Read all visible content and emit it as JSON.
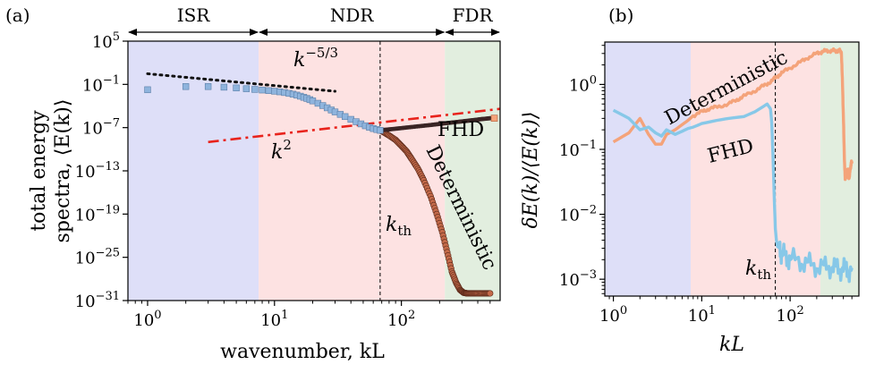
{
  "chart_data": [
    {
      "panel": "(a)",
      "type": "scatter",
      "xscale": "log",
      "yscale": "log",
      "xlabel": "wavenumber, kL",
      "ylabel_line1": "total energy",
      "ylabel_line2": "spectra, ⟨E(k)⟩",
      "xlim": [
        0.7,
        600
      ],
      "ylim": [
        1e-31,
        100000.0
      ],
      "xticks": [
        {
          "value": 1,
          "base": "10",
          "exp": "0"
        },
        {
          "value": 10,
          "base": "10",
          "exp": "1"
        },
        {
          "value": 100,
          "base": "10",
          "exp": "2"
        }
      ],
      "yticks": [
        {
          "value": 100000.0,
          "base": "10",
          "exp": "5"
        },
        {
          "value": 0.1,
          "base": "10",
          "exp": "−1"
        },
        {
          "value": 1e-07,
          "base": "10",
          "exp": "−7"
        },
        {
          "value": 1e-13,
          "base": "10",
          "exp": "−13"
        },
        {
          "value": 1e-19,
          "base": "10",
          "exp": "−19"
        },
        {
          "value": 1e-25,
          "base": "10",
          "exp": "−25"
        },
        {
          "value": 1e-31,
          "base": "10",
          "exp": "−31"
        }
      ],
      "regions": [
        {
          "name": "ISR",
          "kmin": 0.7,
          "kmax": 7.5,
          "color": "#dedff8"
        },
        {
          "name": "NDR",
          "kmin": 7.5,
          "kmax": 220,
          "color": "#fde2e2"
        },
        {
          "name": "FDR",
          "kmin": 220,
          "kmax": 600,
          "color": "#e2eedf"
        }
      ],
      "k_th": 68,
      "k_th_label": "k",
      "k_th_sub": "th",
      "series": [
        {
          "name": "FHD",
          "marker": "square",
          "color": "#8fb4dd",
          "x": [
            1,
            2,
            3,
            4,
            5,
            6,
            7,
            8,
            9,
            10,
            11,
            12,
            13,
            14,
            15,
            16,
            17,
            18,
            19,
            20,
            22,
            24,
            26,
            28,
            30,
            33,
            36,
            40,
            44,
            48,
            52,
            56,
            60,
            64,
            68
          ],
          "values": [
            0.018,
            0.05,
            0.05,
            0.041,
            0.032,
            0.025,
            0.02,
            0.0165,
            0.0137,
            0.0114,
            0.0093,
            0.0074,
            0.0057,
            0.0043,
            0.0032,
            0.0023,
            0.0016,
            0.00112,
            0.00076,
            0.00051,
            0.00024,
            0.000115,
            5.6e-05,
            2.8e-05,
            1.5e-05,
            6.9e-06,
            3.4e-06,
            1.4e-06,
            6.6e-07,
            3.3e-07,
            1.8e-07,
            1.1e-07,
            7.4e-08,
            5.4e-08,
            4.2e-08
          ]
        },
        {
          "name": "FHD",
          "marker": "dot",
          "color": "#3a2525",
          "x": [
            68,
            80,
            100,
            130,
            170,
            220,
            280,
            350,
            420,
            500
          ],
          "values": [
            4.2e-08,
            5.6e-08,
            8.5e-08,
            1.4e-07,
            2.3e-07,
            3.9e-07,
            6.3e-07,
            9.8e-07,
            1.45e-06,
            2e-06
          ]
        },
        {
          "name": "Deterministic",
          "marker": "circle",
          "color": "#c46a4a",
          "x": [
            68,
            72,
            80,
            90,
            100,
            110,
            120,
            135,
            150,
            170,
            190,
            210,
            230,
            250,
            270,
            290,
            310,
            330,
            360,
            400,
            450,
            500
          ],
          "values": [
            4.2e-08,
            2.5e-08,
            8e-09,
            2e-09,
            3e-10,
            5e-11,
            5e-12,
            2e-13,
            5e-15,
            3e-17,
            1e-19,
            3e-22,
            5e-25,
            1e-27,
            3e-29,
            3e-30,
            1.2e-30,
            1e-30,
            1e-30,
            1e-30,
            1e-30,
            1e-30
          ]
        },
        {
          "name": "k^-5/3 reference",
          "style": "dotted",
          "color": "#111111",
          "x": [
            1,
            30
          ],
          "values": [
            3,
            0.011
          ]
        },
        {
          "name": "k^2 reference",
          "style": "dash-dot",
          "color": "#e8231c",
          "x": [
            3,
            600
          ],
          "values": [
            1e-09,
            4e-05
          ]
        }
      ],
      "annotations": [
        {
          "text": "k",
          "sup": "−5/3"
        },
        {
          "text": "k",
          "sup": "2"
        },
        {
          "text": "FHD"
        },
        {
          "text": "Deterministic"
        }
      ]
    },
    {
      "panel": "(b)",
      "type": "line",
      "xscale": "log",
      "yscale": "log",
      "xlabel": "kL",
      "ylabel": "δE(k)/⟨E(k)⟩",
      "xlim": [
        0.8,
        600
      ],
      "ylim": [
        0.00055,
        4.5
      ],
      "xticks": [
        {
          "value": 1,
          "base": "10",
          "exp": "0"
        },
        {
          "value": 10,
          "base": "10",
          "exp": "1"
        },
        {
          "value": 100,
          "base": "10",
          "exp": "2"
        }
      ],
      "yticks": [
        {
          "value": 0.001,
          "base": "10",
          "exp": "−3"
        },
        {
          "value": 0.01,
          "base": "10",
          "exp": "−2"
        },
        {
          "value": 0.1,
          "base": "10",
          "exp": "−1"
        },
        {
          "value": 1,
          "base": "10",
          "exp": "0"
        }
      ],
      "regions": [
        {
          "name": "ISR",
          "kmin": 0.8,
          "kmax": 7.5,
          "color": "#dedff8"
        },
        {
          "name": "NDR",
          "kmin": 7.5,
          "kmax": 220,
          "color": "#fde2e2"
        },
        {
          "name": "FDR",
          "kmin": 220,
          "kmax": 600,
          "color": "#e2eedf"
        }
      ],
      "k_th": 68,
      "k_th_label": "k",
      "k_th_sub": "th",
      "series": [
        {
          "name": "Deterministic",
          "color": "#f4a37a",
          "x": [
            1,
            1.5,
            2,
            2.5,
            3,
            3.5,
            4,
            5,
            6,
            7,
            8,
            10,
            12,
            15,
            20,
            25,
            30,
            40,
            50,
            60,
            70,
            80,
            100,
            130,
            160,
            200,
            230,
            260,
            300,
            330,
            360,
            380,
            390,
            400,
            410,
            420,
            430,
            440,
            450,
            460,
            470,
            480,
            490,
            500
          ],
          "values": [
            0.13,
            0.18,
            0.3,
            0.17,
            0.12,
            0.12,
            0.17,
            0.2,
            0.24,
            0.28,
            0.33,
            0.38,
            0.42,
            0.45,
            0.5,
            0.58,
            0.66,
            0.8,
            0.95,
            1.1,
            1.3,
            1.5,
            1.8,
            2.2,
            2.6,
            3.0,
            3.2,
            3.3,
            3.3,
            3.3,
            3.3,
            3.2,
            1.2,
            0.35,
            0.08,
            0.035,
            0.05,
            0.035,
            0.05,
            0.035,
            0.04,
            0.05,
            0.06,
            0.065
          ]
        },
        {
          "name": "FHD",
          "color": "#87c8e8",
          "x": [
            1,
            1.5,
            2,
            2.5,
            3,
            3.5,
            4,
            5,
            6,
            7,
            8,
            10,
            15,
            20,
            30,
            40,
            50,
            55,
            60,
            62,
            64,
            66,
            68,
            70,
            72,
            76,
            80,
            90,
            100,
            130,
            160,
            200,
            250,
            300,
            350,
            400,
            450,
            500
          ],
          "values": [
            0.4,
            0.3,
            0.2,
            0.22,
            0.18,
            0.16,
            0.2,
            0.17,
            0.19,
            0.21,
            0.22,
            0.25,
            0.28,
            0.3,
            0.32,
            0.38,
            0.46,
            0.5,
            0.42,
            0.25,
            0.08,
            0.02,
            0.006,
            0.004,
            0.0032,
            0.003,
            0.0025,
            0.0022,
            0.002,
            0.0019,
            0.0017,
            0.0016,
            0.0015,
            0.0016,
            0.0014,
            0.0015,
            0.0013,
            0.0015
          ]
        }
      ],
      "annotations": [
        {
          "text": "Deterministic"
        },
        {
          "text": "FHD"
        },
        {
          "text": "k",
          "sub": "th"
        }
      ]
    }
  ],
  "figure": {
    "panel_labels": [
      "(a)",
      "(b)"
    ],
    "region_labels": [
      "ISR",
      "NDR",
      "FDR"
    ]
  }
}
